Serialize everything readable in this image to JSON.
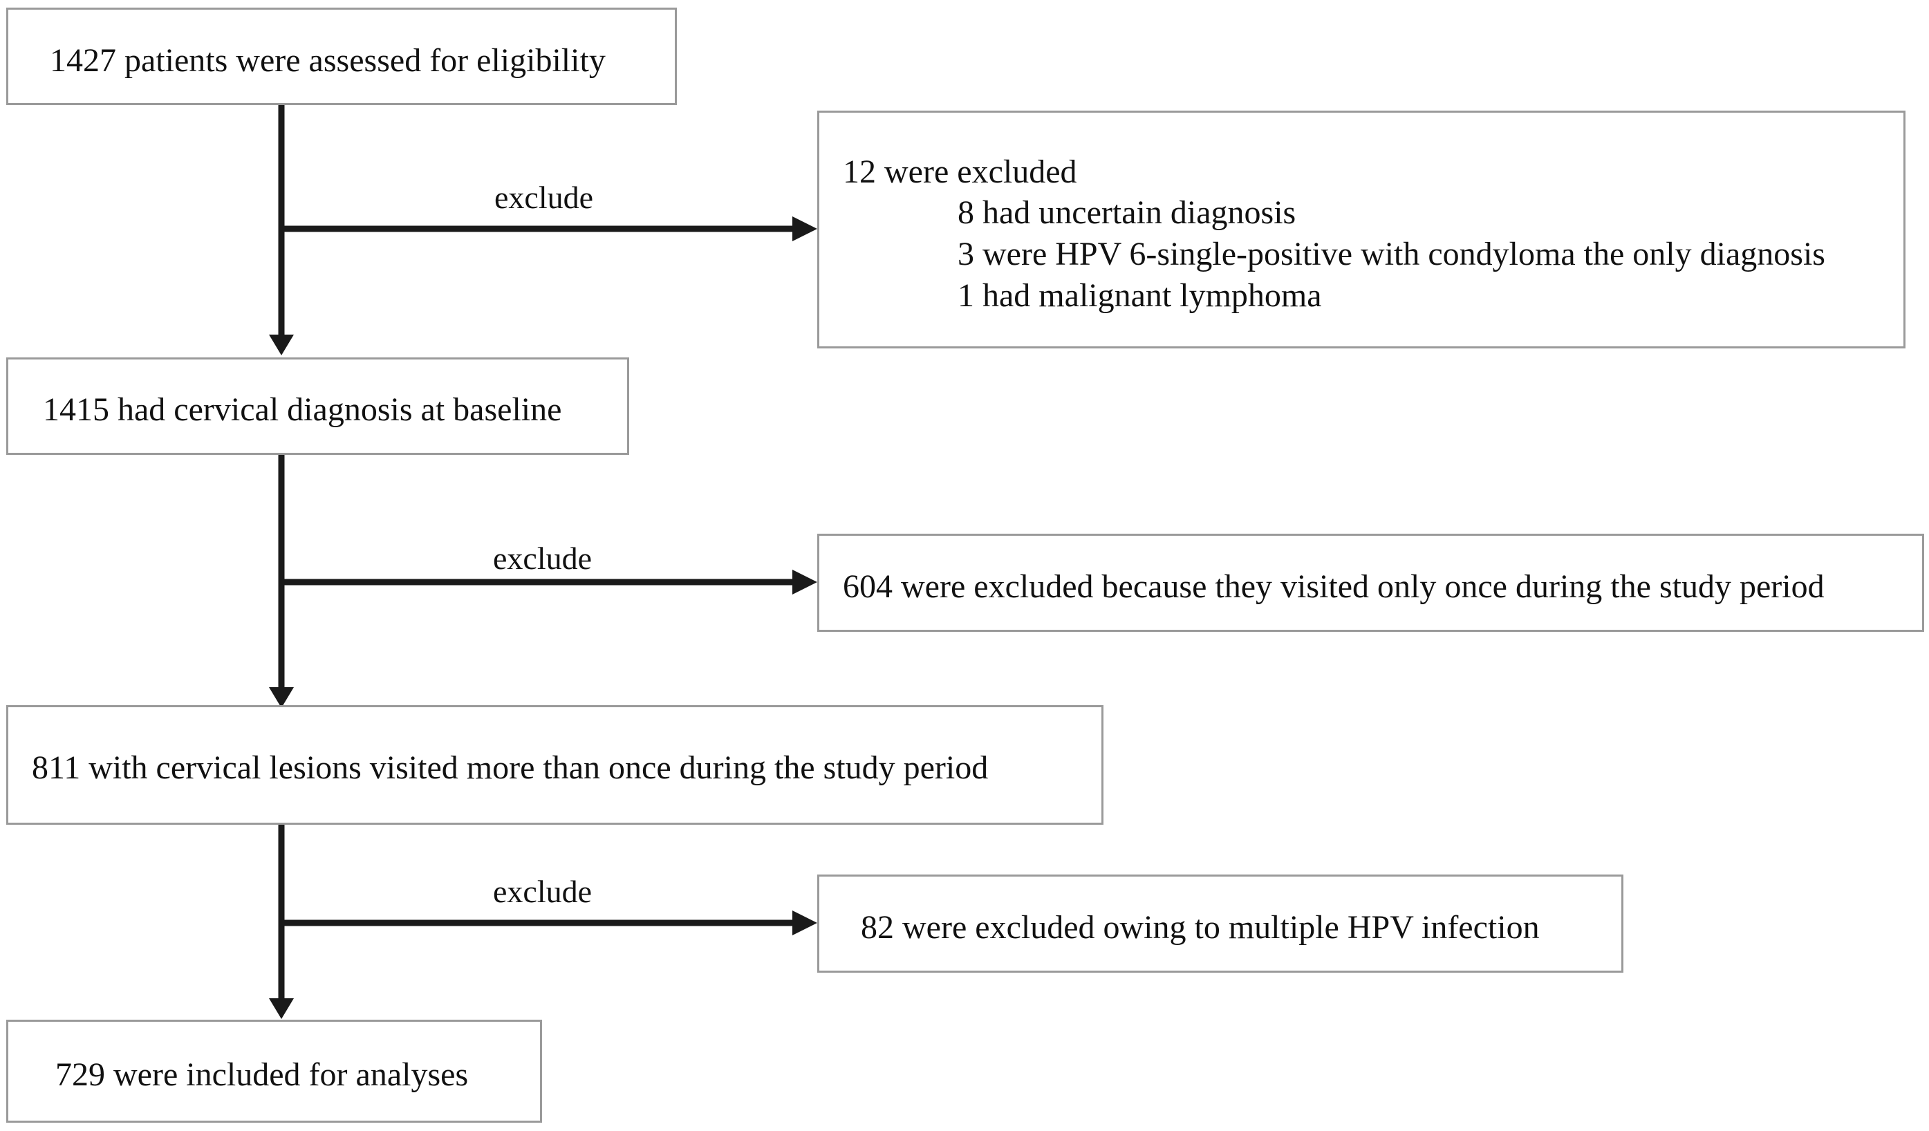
{
  "steps": {
    "assessed": "1427 patients were assessed for eligibility",
    "baseline": "1415 had cervical diagnosis at baseline",
    "multi_visit": "811 with cervical lesions visited more than once during the study period",
    "included": "729 were included for analyses"
  },
  "exclusions": {
    "first": {
      "title": "12 were excluded",
      "items": [
        "8 had uncertain diagnosis",
        "3 were HPV 6-single-positive with condyloma the only diagnosis",
        "1 had malignant lymphoma"
      ]
    },
    "second": "604 were excluded because they visited only once during the study period",
    "third": "82 were excluded owing to multiple HPV infection"
  },
  "labels": {
    "exclude_1": "exclude",
    "exclude_2": "exclude",
    "exclude_3": "exclude"
  }
}
